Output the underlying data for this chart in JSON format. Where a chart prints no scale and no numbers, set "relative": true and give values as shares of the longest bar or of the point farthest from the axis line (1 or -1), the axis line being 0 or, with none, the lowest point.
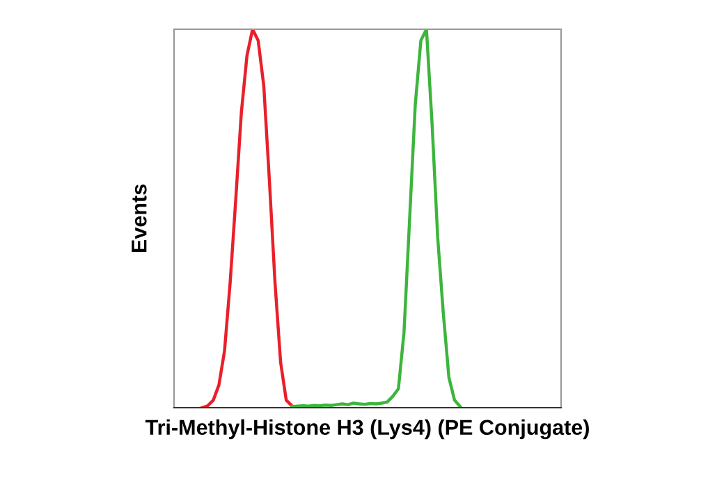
{
  "chart_data": {
    "type": "line",
    "relative": true,
    "xlabel": "Tri-Methyl-Histone H3 (Lys4) (PE Conjugate)",
    "ylabel": "Events",
    "tick_labels": false,
    "marker": "none",
    "line_style": "solid",
    "categories": [
      null,
      null,
      null,
      null,
      null,
      null,
      null,
      null,
      null,
      null,
      null,
      null,
      null,
      null,
      null,
      null,
      null,
      null,
      null,
      null,
      null,
      null,
      null,
      null,
      null,
      null,
      null,
      null,
      null,
      null,
      null,
      null,
      null,
      null,
      null,
      null,
      null,
      null,
      null,
      null,
      null,
      null,
      null,
      null,
      null,
      null,
      null,
      null,
      null,
      null,
      null,
      null,
      null,
      null,
      null,
      null,
      null,
      null,
      null,
      null,
      null,
      null,
      null,
      null,
      null,
      null,
      null,
      null,
      null,
      null
    ],
    "series": [
      {
        "color": "#e8202a",
        "values": [
          null,
          null,
          null,
          null,
          null,
          0,
          0.005,
          0.02,
          0.06,
          0.15,
          0.33,
          0.55,
          0.78,
          0.93,
          1,
          0.97,
          0.85,
          0.6,
          0.33,
          0.12,
          0.02,
          0.005,
          null,
          null,
          null,
          null,
          null,
          null,
          null,
          null,
          null,
          null,
          null,
          null,
          null,
          null,
          null,
          null,
          null,
          null,
          null,
          null,
          null,
          null,
          null,
          null,
          null,
          null,
          null,
          null,
          null,
          null,
          null,
          null,
          null,
          null,
          null,
          null,
          null,
          null,
          null,
          null,
          null,
          null,
          null,
          null,
          null,
          null,
          null,
          null
        ]
      },
      {
        "color": "#3db53d",
        "values": [
          null,
          null,
          null,
          null,
          null,
          null,
          null,
          null,
          null,
          null,
          null,
          null,
          null,
          null,
          null,
          null,
          null,
          null,
          null,
          null,
          null,
          0.003,
          0.004,
          0.005,
          0.004,
          0.006,
          0.005,
          0.007,
          0.006,
          0.008,
          0.01,
          0.008,
          0.012,
          0.01,
          0.009,
          0.011,
          0.01,
          0.012,
          0.015,
          0.03,
          0.05,
          0.2,
          0.5,
          0.8,
          0.97,
          1,
          0.75,
          0.45,
          0.25,
          0.08,
          0.02,
          0.003,
          null,
          null,
          null,
          null,
          null,
          null,
          null,
          null,
          null,
          null,
          null,
          null,
          null,
          null,
          null,
          null,
          null,
          null
        ]
      }
    ]
  }
}
